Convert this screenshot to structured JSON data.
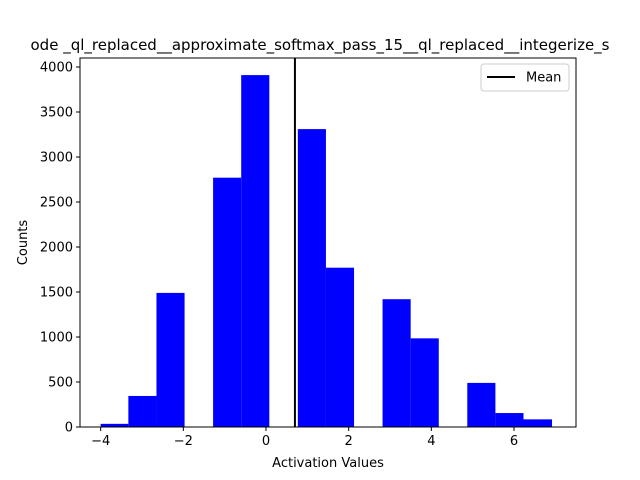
{
  "chart_data": {
    "type": "bar",
    "title": "ode _ql_replaced__approximate_softmax_pass_15__ql_replaced__integerize_s",
    "xlabel": "Activation Values",
    "ylabel": "Counts",
    "xlim": [
      -4.5,
      7.5
    ],
    "ylim": [
      0,
      4100
    ],
    "xticks": [
      -4,
      -2,
      0,
      2,
      4,
      6
    ],
    "yticks": [
      0,
      500,
      1000,
      1500,
      2000,
      2500,
      3000,
      3500,
      4000
    ],
    "bar_color": "#0000ff",
    "bins": [
      {
        "x0": -4.0,
        "x1": -3.33,
        "count": 35
      },
      {
        "x0": -3.33,
        "x1": -2.65,
        "count": 345
      },
      {
        "x0": -2.65,
        "x1": -1.97,
        "count": 1490
      },
      {
        "x0": -1.97,
        "x1": -1.28,
        "count": 0
      },
      {
        "x0": -1.28,
        "x1": -0.6,
        "count": 2770
      },
      {
        "x0": -0.6,
        "x1": 0.08,
        "count": 3910
      },
      {
        "x0": 0.08,
        "x1": 0.77,
        "count": 0
      },
      {
        "x0": 0.77,
        "x1": 1.45,
        "count": 3310
      },
      {
        "x0": 1.45,
        "x1": 2.13,
        "count": 1770
      },
      {
        "x0": 2.13,
        "x1": 2.82,
        "count": 0
      },
      {
        "x0": 2.82,
        "x1": 3.5,
        "count": 1420
      },
      {
        "x0": 3.5,
        "x1": 4.18,
        "count": 985
      },
      {
        "x0": 4.18,
        "x1": 4.87,
        "count": 0
      },
      {
        "x0": 4.87,
        "x1": 5.55,
        "count": 490
      },
      {
        "x0": 5.55,
        "x1": 6.23,
        "count": 155
      },
      {
        "x0": 6.23,
        "x1": 6.92,
        "count": 85
      }
    ],
    "mean": 0.7,
    "mean_color": "#000000",
    "legend": {
      "entries": [
        "Mean"
      ],
      "placement": "top-right"
    }
  }
}
